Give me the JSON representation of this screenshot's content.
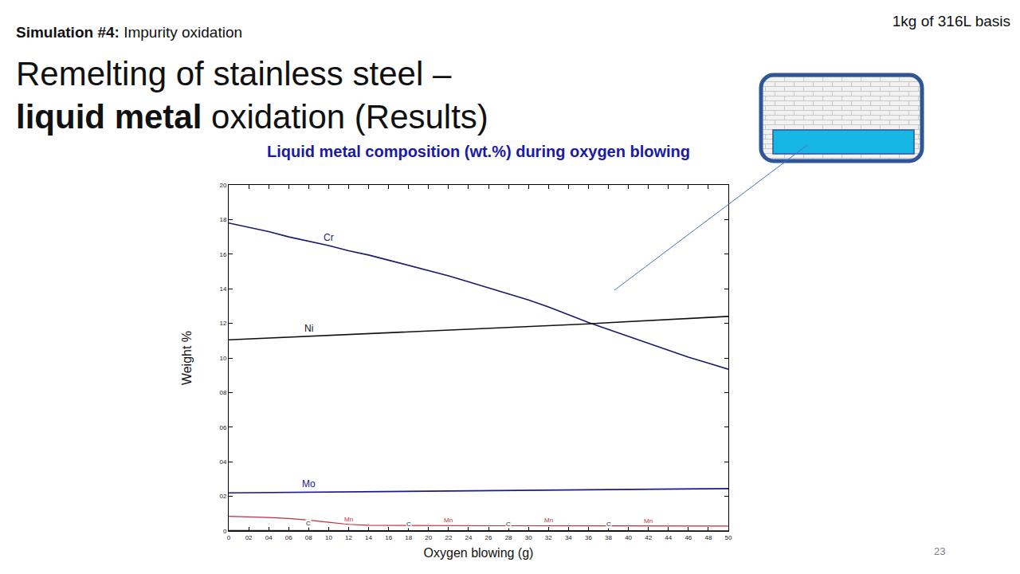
{
  "slide": {
    "tag": "Simulation #4:",
    "subtag": "Impurity oxidation",
    "heading_line1": "Remelting of stainless steel –",
    "heading_bold": "liquid metal",
    "heading_rest": "oxidation (Results)",
    "basis": "1kg of 316L basis",
    "page": "23"
  },
  "chart_data": {
    "type": "line",
    "title": "Liquid metal composition (wt.%) during oxygen blowing",
    "x_label": "Oxygen blowing (g)",
    "y_label": "Weight %",
    "x": [
      0,
      2,
      4,
      6,
      8,
      10,
      12,
      14,
      16,
      18,
      20,
      22,
      24,
      26,
      28,
      30,
      32,
      34,
      36,
      38,
      40,
      42,
      44,
      46,
      48,
      50
    ],
    "series": [
      {
        "name": "Cr",
        "color": "#1a1a6e",
        "values": [
          17.8,
          17.55,
          17.3,
          17.0,
          16.75,
          16.5,
          16.2,
          15.95,
          15.65,
          15.35,
          15.05,
          14.75,
          14.4,
          14.05,
          13.7,
          13.35,
          12.95,
          12.5,
          12.05,
          11.65,
          11.25,
          10.85,
          10.45,
          10.05,
          9.7,
          9.35
        ]
      },
      {
        "name": "Ni",
        "color": "#111111",
        "values": [
          11.05,
          11.1,
          11.15,
          11.2,
          11.25,
          11.3,
          11.35,
          11.4,
          11.45,
          11.5,
          11.55,
          11.6,
          11.65,
          11.7,
          11.75,
          11.8,
          11.85,
          11.9,
          11.97,
          12.04,
          12.1,
          12.16,
          12.22,
          12.28,
          12.34,
          12.4
        ]
      },
      {
        "name": "Mo",
        "color": "#1a1a8c",
        "values": [
          2.2,
          2.21,
          2.22,
          2.23,
          2.24,
          2.25,
          2.26,
          2.27,
          2.28,
          2.29,
          2.3,
          2.31,
          2.32,
          2.33,
          2.34,
          2.35,
          2.36,
          2.37,
          2.38,
          2.39,
          2.4,
          2.41,
          2.42,
          2.43,
          2.44,
          2.45
        ]
      },
      {
        "name": "Mn",
        "color": "#c0303a",
        "values": [
          0.85,
          0.82,
          0.78,
          0.72,
          0.63,
          0.5,
          0.38,
          0.33,
          0.32,
          0.32,
          0.31,
          0.31,
          0.31,
          0.3,
          0.3,
          0.3,
          0.3,
          0.29,
          0.29,
          0.29,
          0.29,
          0.28,
          0.28,
          0.28,
          0.28,
          0.28
        ]
      },
      {
        "name": "C",
        "color": "#222222",
        "values": [
          0.03,
          0.03,
          0.03,
          0.03,
          0.03,
          0.02,
          0.02,
          0.02,
          0.02,
          0.02,
          0.02,
          0.02,
          0.02,
          0.02,
          0.02,
          0.02,
          0.02,
          0.01,
          0.01,
          0.01,
          0.01,
          0.01,
          0.01,
          0.01,
          0.01,
          0.01
        ]
      }
    ],
    "xlim": [
      0,
      50
    ],
    "xticks": [
      0,
      {
        "value": 2,
        "label": "02"
      },
      {
        "value": 4,
        "label": "04"
      },
      {
        "value": 6,
        "label": "06"
      },
      {
        "value": 8,
        "label": "08"
      },
      10,
      12,
      14,
      16,
      18,
      20,
      22,
      24,
      26,
      28,
      30,
      32,
      34,
      36,
      38,
      40,
      42,
      44,
      46,
      48,
      50
    ],
    "ylim": [
      0,
      20
    ],
    "yticks": [
      0,
      {
        "value": 2,
        "label": "02"
      },
      {
        "value": 4,
        "label": "04"
      },
      {
        "value": 6,
        "label": "06"
      },
      {
        "value": 8,
        "label": "08"
      },
      10,
      12,
      14,
      16,
      18,
      20
    ],
    "grid": false
  }
}
